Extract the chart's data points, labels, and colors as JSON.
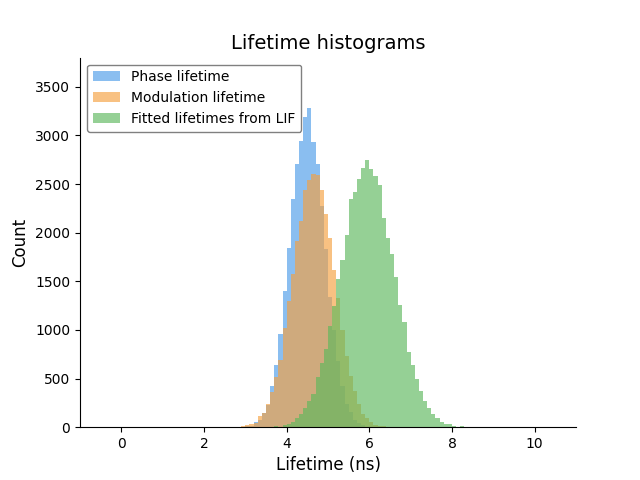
{
  "title": "Lifetime histograms",
  "xlabel": "Lifetime (ns)",
  "ylabel": "Count",
  "xlim": [
    -1,
    11
  ],
  "ylim": [
    0,
    3800
  ],
  "xticks": [
    0,
    2,
    4,
    6,
    8,
    10
  ],
  "yticks": [
    0,
    500,
    1000,
    1500,
    2000,
    2500,
    3000,
    3500
  ],
  "phase_mean": 4.5,
  "phase_std": 0.42,
  "phase_n": 34000,
  "phase_color": "#4C9BE8",
  "modulation_mean": 4.65,
  "modulation_std": 0.5,
  "modulation_n": 33000,
  "modulation_color": "#F5A040",
  "lif_mean": 5.95,
  "lif_std": 0.65,
  "lif_n": 44000,
  "lif_color": "#5CB85C",
  "bin_width": 0.1,
  "bins_start": -1.0,
  "bins_end": 11.0,
  "alpha": 0.65,
  "legend_labels": [
    "Phase lifetime",
    "Modulation lifetime",
    "Fitted lifetimes from LIF"
  ],
  "title_fontsize": 14,
  "label_fontsize": 12,
  "tick_fontsize": 10,
  "legend_fontsize": 10,
  "seed": 42
}
